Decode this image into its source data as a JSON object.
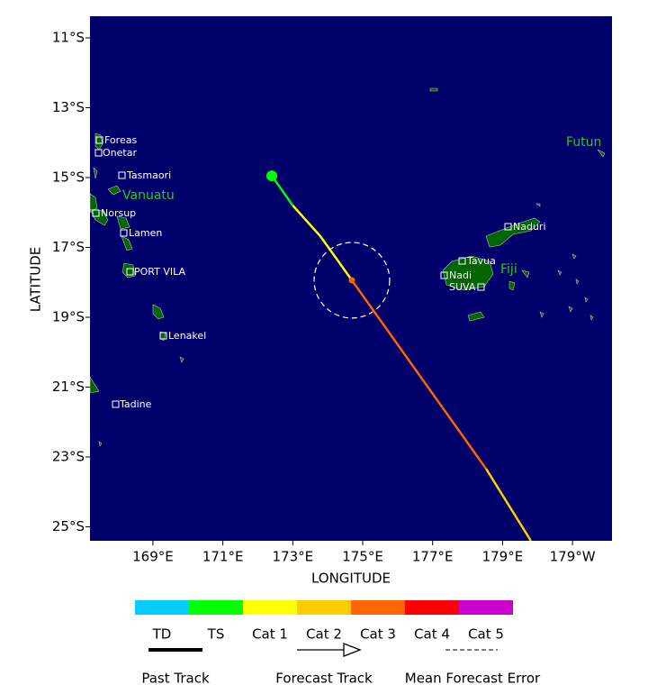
{
  "map": {
    "xlabel": "LONGITUDE",
    "ylabel": "LATITUDE",
    "xlim": [
      167.2,
      182.13
    ],
    "ylim": [
      -25.4,
      -10.38
    ],
    "xticks": [
      {
        "value": 169,
        "label": "169°E"
      },
      {
        "value": 171,
        "label": "171°E"
      },
      {
        "value": 173,
        "label": "173°E"
      },
      {
        "value": 175,
        "label": "175°E"
      },
      {
        "value": 177,
        "label": "177°E"
      },
      {
        "value": 179,
        "label": "179°E"
      },
      {
        "value": 181,
        "label": "179°W"
      }
    ],
    "yticks": [
      {
        "value": -11,
        "label": "11°S"
      },
      {
        "value": -13,
        "label": "13°S"
      },
      {
        "value": -15,
        "label": "15°S"
      },
      {
        "value": -17,
        "label": "17°S"
      },
      {
        "value": -19,
        "label": "19°S"
      },
      {
        "value": -21,
        "label": "21°S"
      },
      {
        "value": -23,
        "label": "23°S"
      },
      {
        "value": -25,
        "label": "25°S"
      }
    ],
    "places": [
      "Foreas",
      "Onetar",
      "Tasmaori",
      "Norsup",
      "Lamen",
      "PORT VILA",
      "Lenakel",
      "Tadine",
      "Naduri",
      "Tavua",
      "Nadi",
      "SUVA"
    ],
    "countries": [
      "Vanuatu",
      "Fiji",
      "Futun"
    ],
    "track": {
      "start": {
        "lon": 172.4,
        "lat": -14.95,
        "color": "#00ff00"
      },
      "current": {
        "lon": 174.69,
        "lat": -17.94,
        "color": "#ff6600"
      },
      "error_radius_deg": 1.08,
      "segments": [
        {
          "color": "#00ff00",
          "lon": [
            172.4,
            173.0
          ],
          "lat": [
            -14.95,
            -15.8
          ]
        },
        {
          "color": "#ffff00",
          "lon": [
            173.0,
            173.79,
            174.69
          ],
          "lat": [
            -15.8,
            -16.68,
            -17.94
          ]
        },
        {
          "color": "#ff6600",
          "lon": [
            174.69,
            178.53
          ],
          "lat": [
            -17.94,
            -23.34
          ]
        },
        {
          "color": "#ffcc00",
          "lon": [
            178.53,
            179.81
          ],
          "lat": [
            -23.34,
            -25.4
          ]
        }
      ]
    },
    "legend": {
      "categories": [
        {
          "name": "TD",
          "color": "#00ccff"
        },
        {
          "name": "TS",
          "color": "#00ff00"
        },
        {
          "name": "Cat 1",
          "color": "#ffff00"
        },
        {
          "name": "Cat 2",
          "color": "#ffcc00"
        },
        {
          "name": "Cat 3",
          "color": "#ff6600"
        },
        {
          "name": "Cat 4",
          "color": "#ff0000"
        },
        {
          "name": "Cat 5",
          "color": "#cc00cc"
        }
      ],
      "items": [
        "Past Track",
        "Forecast Track",
        "Mean Forecast Error"
      ]
    }
  }
}
